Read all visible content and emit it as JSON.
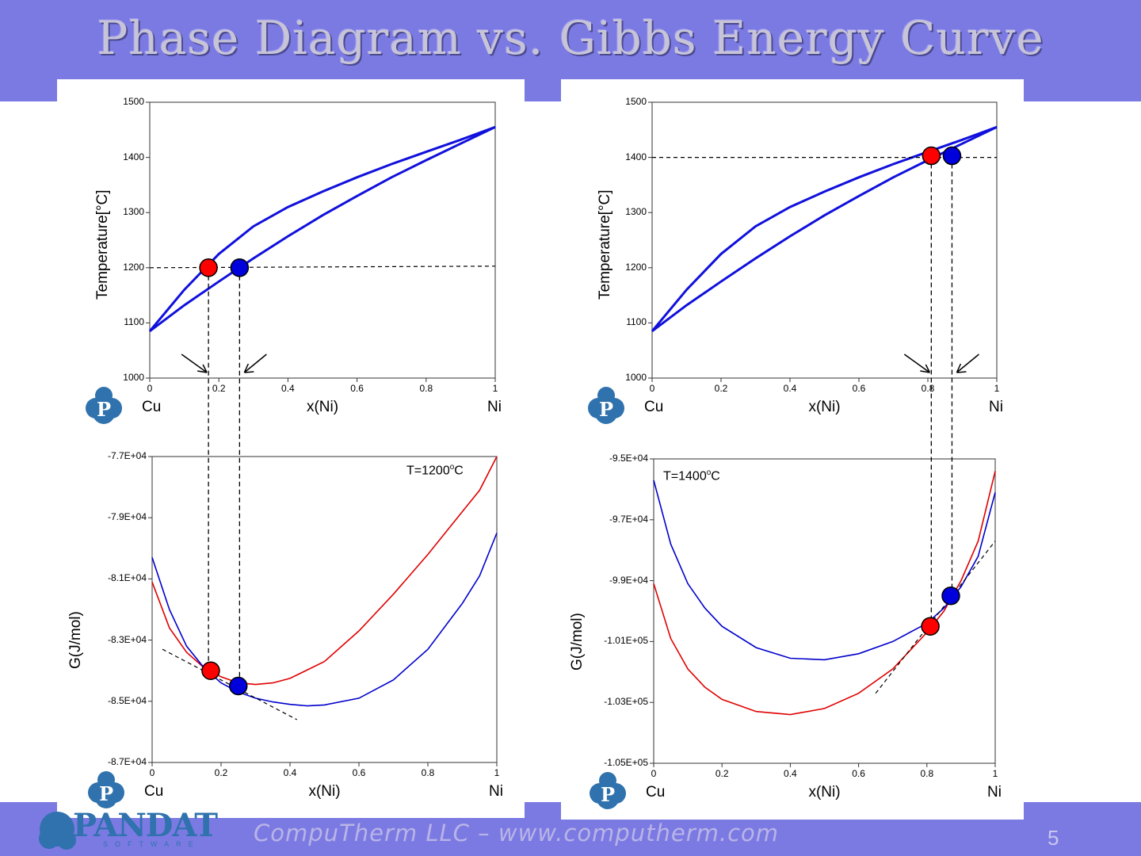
{
  "title": "Phase Diagram vs. Gibbs Energy Curve",
  "footer": {
    "text": "CompuTherm LLC – www.computherm.com",
    "page": "5"
  },
  "brand": {
    "name": "PANDAT",
    "sub": "SOFTWARE",
    "icon_letter": "P"
  },
  "colors": {
    "band": "#7b7ae3",
    "liquid": "#e00000",
    "solid": "#0000cc",
    "phase_line": "#1010dd"
  },
  "element_labels": {
    "left": "Cu",
    "right": "Ni"
  },
  "chart_data": [
    {
      "id": "phase-left",
      "type": "line",
      "xlabel": "x(Ni)",
      "ylabel": "Temperature[°C]",
      "xlim": [
        0,
        1
      ],
      "ylim": [
        1000,
        1500
      ],
      "xticks": [
        "0",
        "0.2",
        "0.4",
        "0.6",
        "0.8",
        "1"
      ],
      "yticks": [
        "1000",
        "1100",
        "1200",
        "1300",
        "1400",
        "1500"
      ],
      "series": [
        {
          "role": "liquidus",
          "x": [
            0,
            0.1,
            0.2,
            0.3,
            0.4,
            0.5,
            0.6,
            0.7,
            0.8,
            0.9,
            1
          ],
          "y": [
            1085,
            1160,
            1225,
            1275,
            1310,
            1338,
            1364,
            1388,
            1410,
            1432,
            1455
          ]
        },
        {
          "role": "solidus",
          "x": [
            0,
            0.1,
            0.2,
            0.3,
            0.4,
            0.5,
            0.6,
            0.7,
            0.8,
            0.9,
            1
          ],
          "y": [
            1085,
            1132,
            1175,
            1217,
            1257,
            1295,
            1330,
            1364,
            1395,
            1425,
            1455
          ]
        }
      ],
      "isotherm": 1200,
      "points": [
        {
          "color": "red",
          "x": 0.17,
          "y": 1200
        },
        {
          "color": "blue",
          "x": 0.26,
          "y": 1200
        }
      ]
    },
    {
      "id": "gibbs-left",
      "type": "line",
      "xlabel": "x(Ni)",
      "ylabel": "G(J/mol)",
      "xlim": [
        0,
        1
      ],
      "ylim": [
        -87000,
        -77000
      ],
      "xticks": [
        "0",
        "0.2",
        "0.4",
        "0.6",
        "0.8",
        "1"
      ],
      "yticks": [
        "-8.7E+04",
        "-8.5E+04",
        "-8.3E+04",
        "-8.1E+04",
        "-7.9E+04",
        "-7.7E+04"
      ],
      "annotation": "T=1200",
      "series": [
        {
          "role": "liquid",
          "x": [
            0,
            0.05,
            0.1,
            0.15,
            0.2,
            0.25,
            0.3,
            0.35,
            0.4,
            0.5,
            0.6,
            0.7,
            0.8,
            0.9,
            0.95,
            1
          ],
          "y": [
            -81100,
            -82600,
            -83400,
            -83900,
            -84200,
            -84400,
            -84450,
            -84400,
            -84250,
            -83700,
            -82700,
            -81500,
            -80200,
            -78800,
            -78100,
            -77000
          ]
        },
        {
          "role": "solid",
          "x": [
            0,
            0.05,
            0.1,
            0.15,
            0.2,
            0.25,
            0.3,
            0.35,
            0.4,
            0.45,
            0.5,
            0.6,
            0.7,
            0.8,
            0.9,
            0.95,
            1
          ],
          "y": [
            -80300,
            -82000,
            -83200,
            -83900,
            -84400,
            -84700,
            -84900,
            -85020,
            -85100,
            -85150,
            -85120,
            -84900,
            -84300,
            -83300,
            -81800,
            -80900,
            -79500
          ]
        }
      ],
      "tangent": {
        "x": [
          0.03,
          0.42
        ],
        "y": [
          -83300,
          -85600
        ]
      },
      "points": [
        {
          "color": "red",
          "x": 0.17,
          "y": -84000
        },
        {
          "color": "blue",
          "x": 0.25,
          "y": -84500
        }
      ]
    },
    {
      "id": "phase-right",
      "type": "line",
      "xlabel": "x(Ni)",
      "ylabel": "Temperature[°C]",
      "xlim": [
        0,
        1
      ],
      "ylim": [
        1000,
        1500
      ],
      "xticks": [
        "0",
        "0.2",
        "0.4",
        "0.6",
        "0.8",
        "1"
      ],
      "yticks": [
        "1000",
        "1100",
        "1200",
        "1300",
        "1400",
        "1500"
      ],
      "series": [
        {
          "role": "liquidus",
          "x": [
            0,
            0.1,
            0.2,
            0.3,
            0.4,
            0.5,
            0.6,
            0.7,
            0.8,
            0.9,
            1
          ],
          "y": [
            1085,
            1160,
            1225,
            1275,
            1310,
            1338,
            1364,
            1388,
            1410,
            1432,
            1455
          ]
        },
        {
          "role": "solidus",
          "x": [
            0,
            0.1,
            0.2,
            0.3,
            0.4,
            0.5,
            0.6,
            0.7,
            0.8,
            0.9,
            1
          ],
          "y": [
            1085,
            1132,
            1175,
            1217,
            1257,
            1295,
            1330,
            1364,
            1395,
            1425,
            1455
          ]
        }
      ],
      "isotherm": 1400,
      "points": [
        {
          "color": "red",
          "x": 0.81,
          "y": 1403
        },
        {
          "color": "blue",
          "x": 0.87,
          "y": 1403
        }
      ]
    },
    {
      "id": "gibbs-right",
      "type": "line",
      "xlabel": "x(Ni)",
      "ylabel": "G(J/mol)",
      "xlim": [
        0,
        1
      ],
      "ylim": [
        -105000,
        -95000
      ],
      "xticks": [
        "0",
        "0.2",
        "0.4",
        "0.6",
        "0.8",
        "1"
      ],
      "yticks": [
        "-1.05E+05",
        "-1.03E+05",
        "-1.01E+05",
        "-9.9E+04",
        "-9.7E+04",
        "-9.5E+04"
      ],
      "annotation": "T=1400",
      "series": [
        {
          "role": "liquid",
          "x": [
            0,
            0.05,
            0.1,
            0.15,
            0.2,
            0.3,
            0.4,
            0.5,
            0.6,
            0.7,
            0.8,
            0.85,
            0.9,
            0.95,
            1
          ],
          "y": [
            -99100,
            -100900,
            -101900,
            -102500,
            -102900,
            -103300,
            -103400,
            -103200,
            -102700,
            -101900,
            -100700,
            -100000,
            -99000,
            -97700,
            -95400
          ]
        },
        {
          "role": "solid",
          "x": [
            0,
            0.05,
            0.1,
            0.15,
            0.2,
            0.3,
            0.4,
            0.5,
            0.6,
            0.7,
            0.8,
            0.85,
            0.9,
            0.95,
            1
          ],
          "y": [
            -95700,
            -97800,
            -99100,
            -99900,
            -100500,
            -101200,
            -101550,
            -101600,
            -101400,
            -101000,
            -100400,
            -99900,
            -99200,
            -98200,
            -96100
          ]
        }
      ],
      "tangent": {
        "x": [
          0.65,
          1.0
        ],
        "y": [
          -102700,
          -97700
        ]
      },
      "points": [
        {
          "color": "red",
          "x": 0.81,
          "y": -100500
        },
        {
          "color": "blue",
          "x": 0.87,
          "y": -99500
        }
      ]
    }
  ]
}
